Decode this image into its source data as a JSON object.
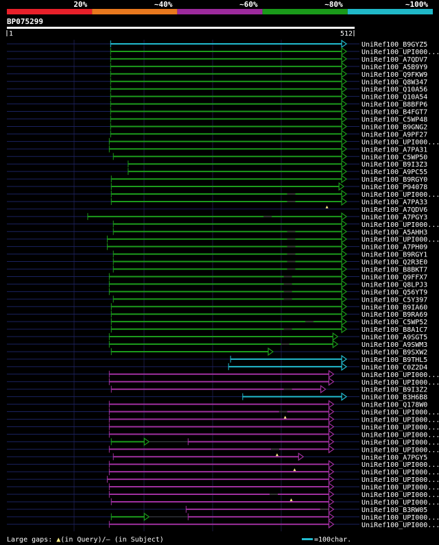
{
  "query_id": "BP075299",
  "query_start": "1",
  "query_end": "512",
  "query_length": 512,
  "identity_scale": [
    {
      "label": "20%",
      "color": "#e8202a"
    },
    {
      "label": "~40%",
      "color": "#e8781e"
    },
    {
      "label": "~60%",
      "color": "#9c2a9c"
    },
    {
      "label": "~80%",
      "color": "#1a9a1a"
    },
    {
      "label": "~100%",
      "color": "#20b8c8"
    }
  ],
  "legend": {
    "large_gaps_prefix": "Large gaps: ",
    "in_query": "(in Query)/",
    "gap_dash": "—",
    "in_subject": " (in Subject)",
    "scale_label": "=100char."
  },
  "colors": {
    "cyan": "#22bcd0",
    "green": "#1c9c1c",
    "purple": "#a030a0",
    "navy": "#1a2260"
  },
  "hits": [
    {
      "name": "UniRef100_B9GYZ5",
      "color": "cyan",
      "start": 155,
      "end": 505,
      "gaps": []
    },
    {
      "name": "UniRef100_UPI000...",
      "color": "green",
      "start": 155,
      "end": 505,
      "gaps": []
    },
    {
      "name": "UniRef100_A7QDV7",
      "color": "green",
      "start": 155,
      "end": 505,
      "gaps": []
    },
    {
      "name": "UniRef100_A5B9Y9",
      "color": "green",
      "start": 155,
      "end": 505,
      "gaps": []
    },
    {
      "name": "UniRef100_Q9FKW9",
      "color": "green",
      "start": 155,
      "end": 505,
      "gaps": []
    },
    {
      "name": "UniRef100_Q8W347",
      "color": "green",
      "start": 155,
      "end": 505,
      "gaps": []
    },
    {
      "name": "UniRef100_Q10A56",
      "color": "green",
      "start": 155,
      "end": 505,
      "gaps": []
    },
    {
      "name": "UniRef100_Q10A54",
      "color": "green",
      "start": 155,
      "end": 505,
      "gaps": []
    },
    {
      "name": "UniRef100_B8BFP6",
      "color": "green",
      "start": 155,
      "end": 505,
      "gaps": []
    },
    {
      "name": "UniRef100_B4FGT7",
      "color": "green",
      "start": 155,
      "end": 505,
      "gaps": []
    },
    {
      "name": "UniRef100_C5WP48",
      "color": "green",
      "start": 155,
      "end": 505,
      "gaps": []
    },
    {
      "name": "UniRef100_B9GNG2",
      "color": "green",
      "start": 155,
      "end": 505,
      "gaps": []
    },
    {
      "name": "UniRef100_A9PF27",
      "color": "green",
      "start": 155,
      "end": 505,
      "gaps": []
    },
    {
      "name": "UniRef100_UPI000...",
      "color": "green",
      "start": 153,
      "end": 505,
      "gaps": []
    },
    {
      "name": "UniRef100_A7PA31",
      "color": "green",
      "start": 153,
      "end": 505,
      "gaps": []
    },
    {
      "name": "UniRef100_C5WP50",
      "color": "green",
      "start": 159,
      "end": 505,
      "gaps": []
    },
    {
      "name": "UniRef100_B9I3Z3",
      "color": "green",
      "start": 181,
      "end": 505,
      "gaps": []
    },
    {
      "name": "UniRef100_A9PC55",
      "color": "green",
      "start": 181,
      "end": 505,
      "gaps": []
    },
    {
      "name": "UniRef100_B9RGY0",
      "color": "green",
      "start": 156,
      "end": 505,
      "gaps": []
    },
    {
      "name": "UniRef100_P94078",
      "color": "green",
      "start": 156,
      "end": 501,
      "gaps": []
    },
    {
      "name": "UniRef100_UPI000...",
      "color": "green",
      "start": 156,
      "end": 505,
      "gaps": [
        {
          "type": "subject",
          "pos": 423
        }
      ]
    },
    {
      "name": "UniRef100_A7PA33",
      "color": "green",
      "start": 156,
      "end": 505,
      "gaps": [
        {
          "type": "subject",
          "pos": 423
        }
      ]
    },
    {
      "name": "UniRef100_A7QDV6",
      "color": "none",
      "start": 190,
      "end": 190,
      "gaps": [
        {
          "type": "query",
          "pos": 476
        }
      ]
    },
    {
      "name": "UniRef100_A7PGY3",
      "color": "green",
      "start": 121,
      "end": 505,
      "gaps": [
        {
          "type": "subject",
          "pos": 388
        }
      ]
    },
    {
      "name": "UniRef100_UPI000...",
      "color": "green",
      "start": 159,
      "end": 505,
      "gaps": []
    },
    {
      "name": "UniRef100_A5AHH3",
      "color": "green",
      "start": 159,
      "end": 505,
      "gaps": [
        {
          "type": "subject",
          "pos": 423
        }
      ]
    },
    {
      "name": "UniRef100_UPI000...",
      "color": "green",
      "start": 150,
      "end": 505,
      "gaps": [
        {
          "type": "subject",
          "pos": 423
        }
      ]
    },
    {
      "name": "UniRef100_A7PH09",
      "color": "green",
      "start": 150,
      "end": 505,
      "gaps": [
        {
          "type": "subject",
          "pos": 423
        }
      ]
    },
    {
      "name": "UniRef100_B9RGY1",
      "color": "green",
      "start": 159,
      "end": 505,
      "gaps": [
        {
          "type": "subject",
          "pos": 423
        }
      ]
    },
    {
      "name": "UniRef100_Q2R3E0",
      "color": "green",
      "start": 159,
      "end": 505,
      "gaps": [
        {
          "type": "subject",
          "pos": 423
        }
      ]
    },
    {
      "name": "UniRef100_B8BKT7",
      "color": "green",
      "start": 159,
      "end": 505,
      "gaps": [
        {
          "type": "subject",
          "pos": 423
        }
      ]
    },
    {
      "name": "UniRef100_Q9FFX7",
      "color": "green",
      "start": 153,
      "end": 505,
      "gaps": [
        {
          "type": "subject",
          "pos": 418
        }
      ]
    },
    {
      "name": "UniRef100_Q8LPJ3",
      "color": "green",
      "start": 153,
      "end": 505,
      "gaps": [
        {
          "type": "subject",
          "pos": 418
        }
      ]
    },
    {
      "name": "UniRef100_Q56YT9",
      "color": "green",
      "start": 153,
      "end": 505,
      "gaps": [
        {
          "type": "subject",
          "pos": 418
        }
      ]
    },
    {
      "name": "UniRef100_C5Y397",
      "color": "green",
      "start": 159,
      "end": 505,
      "gaps": [
        {
          "type": "subject",
          "pos": 418
        }
      ]
    },
    {
      "name": "UniRef100_B9IA60",
      "color": "green",
      "start": 156,
      "end": 505,
      "gaps": []
    },
    {
      "name": "UniRef100_B9RA69",
      "color": "green",
      "start": 156,
      "end": 505,
      "gaps": []
    },
    {
      "name": "UniRef100_C5WP52",
      "color": "green",
      "start": 156,
      "end": 505,
      "gaps": [
        {
          "type": "subject",
          "pos": 450
        }
      ]
    },
    {
      "name": "UniRef100_B8A1C7",
      "color": "green",
      "start": 156,
      "end": 505,
      "gaps": [
        {
          "type": "subject",
          "pos": 418
        }
      ]
    },
    {
      "name": "UniRef100_A9SGT5",
      "color": "green",
      "start": 153,
      "end": 492,
      "gaps": []
    },
    {
      "name": "UniRef100_A9SWM3",
      "color": "green",
      "start": 153,
      "end": 492,
      "gaps": [
        {
          "type": "subject",
          "pos": 414
        }
      ]
    },
    {
      "name": "UniRef100_B9SXW2",
      "color": "green",
      "start": 156,
      "end": 396,
      "gaps": []
    },
    {
      "name": "UniRef100_B9THL5",
      "color": "cyan",
      "start": 333,
      "end": 505,
      "gaps": []
    },
    {
      "name": "UniRef100_C0Z2D4",
      "color": "cyan",
      "start": 330,
      "end": 505,
      "gaps": []
    },
    {
      "name": "UniRef100_UPI000...",
      "color": "purple",
      "start": 153,
      "end": 486,
      "gaps": []
    },
    {
      "name": "UniRef100_UPI000...",
      "color": "purple",
      "start": 153,
      "end": 486,
      "gaps": []
    },
    {
      "name": "UniRef100_B9I3Z2",
      "color": "purple",
      "start": 156,
      "end": 474,
      "gaps": [
        {
          "type": "subject",
          "pos": 418
        }
      ]
    },
    {
      "name": "UniRef100_B3H6B8",
      "color": "cyan",
      "start": 351,
      "end": 505,
      "gaps": []
    },
    {
      "name": "UniRef100_Q178W0",
      "color": "purple",
      "start": 153,
      "end": 486,
      "gaps": []
    },
    {
      "name": "UniRef100_UPI000...",
      "color": "purple",
      "start": 153,
      "end": 486,
      "gaps": [
        {
          "type": "subject",
          "pos": 411
        }
      ]
    },
    {
      "name": "UniRef100_UPI000...",
      "color": "purple",
      "start": 153,
      "end": 486,
      "gaps": [
        {
          "type": "query",
          "pos": 414
        }
      ]
    },
    {
      "name": "UniRef100_UPI000...",
      "color": "purple",
      "start": 153,
      "end": 486,
      "gaps": []
    },
    {
      "name": "UniRef100_UPI000...",
      "color": "purple",
      "start": 153,
      "end": 486,
      "gaps": []
    },
    {
      "name": "UniRef100_UPI000...",
      "color": "green",
      "start": 156,
      "end": 212,
      "gaps": [],
      "extra": {
        "color": "purple",
        "start": 270,
        "end": 486
      }
    },
    {
      "name": "UniRef100_UPI000...",
      "color": "purple",
      "start": 153,
      "end": 486,
      "gaps": [
        {
          "type": "subject",
          "pos": 399
        }
      ]
    },
    {
      "name": "UniRef100_A7PGY5",
      "color": "purple",
      "start": 159,
      "end": 441,
      "gaps": [
        {
          "type": "query",
          "pos": 402
        }
      ]
    },
    {
      "name": "UniRef100_UPI000...",
      "color": "purple",
      "start": 153,
      "end": 486,
      "gaps": []
    },
    {
      "name": "UniRef100_UPI000...",
      "color": "purple",
      "start": 153,
      "end": 486,
      "gaps": [
        {
          "type": "query",
          "pos": 428
        }
      ]
    },
    {
      "name": "UniRef100_UPI000...",
      "color": "purple",
      "start": 150,
      "end": 486,
      "gaps": []
    },
    {
      "name": "UniRef100_UPI000...",
      "color": "purple",
      "start": 153,
      "end": 486,
      "gaps": []
    },
    {
      "name": "UniRef100_UPI000...",
      "color": "purple",
      "start": 153,
      "end": 486,
      "gaps": [
        {
          "type": "subject",
          "pos": 397
        }
      ]
    },
    {
      "name": "UniRef100_UPI000...",
      "color": "purple",
      "start": 156,
      "end": 486,
      "gaps": [
        {
          "type": "query",
          "pos": 423
        }
      ]
    },
    {
      "name": "UniRef100_B3RW05",
      "color": "purple",
      "start": 267,
      "end": 486,
      "gaps": [
        {
          "type": "subject",
          "pos": 472
        }
      ]
    },
    {
      "name": "UniRef100_UPI000...",
      "color": "green",
      "start": 156,
      "end": 212,
      "gaps": [],
      "extra": {
        "color": "purple",
        "start": 270,
        "end": 486
      }
    },
    {
      "name": "UniRef100_UPI000...",
      "color": "purple",
      "start": 153,
      "end": 486,
      "gaps": []
    }
  ]
}
